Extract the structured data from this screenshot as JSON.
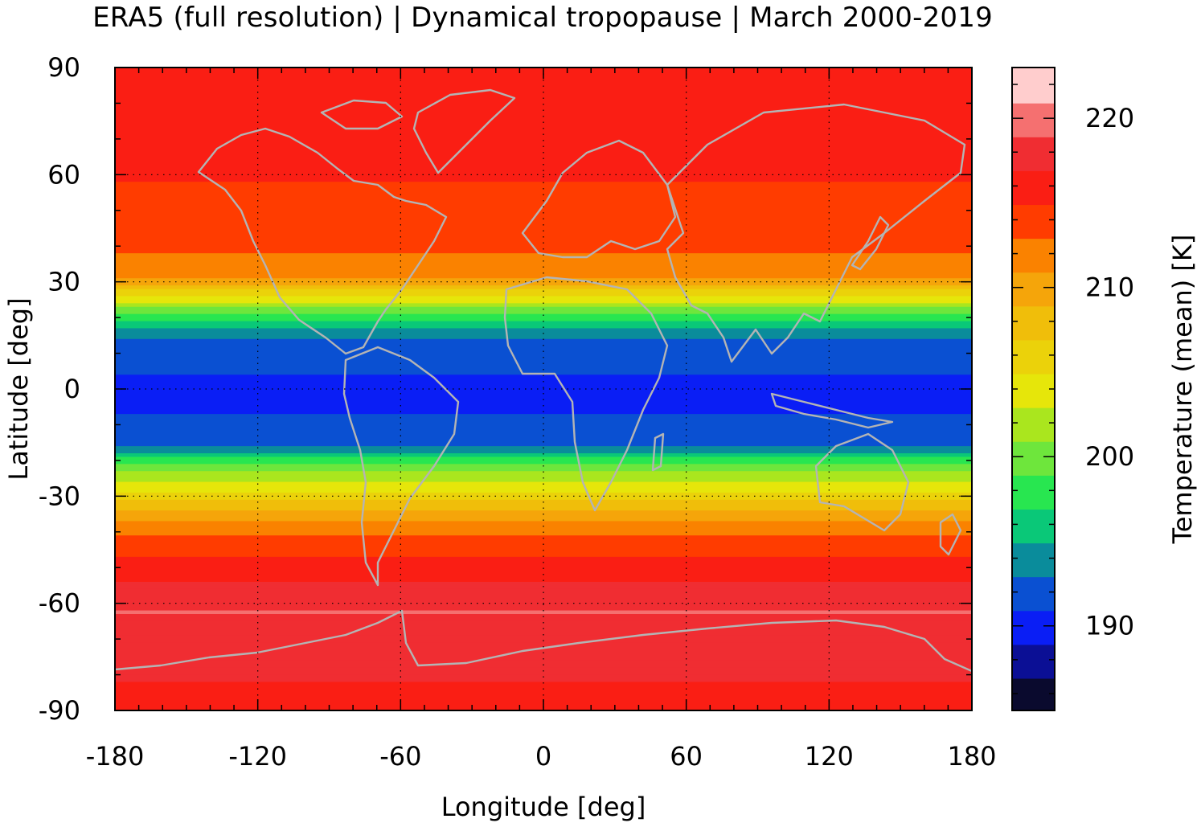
{
  "title": "ERA5 (full resolution) | Dynamical tropopause | March 2000-2019",
  "chart_data": {
    "type": "heatmap",
    "title": "ERA5 (full resolution) | Dynamical tropopause | March 2000-2019",
    "xlabel": "Longitude [deg]",
    "ylabel": "Latitude [deg]",
    "colorbar_label": "Temperature (mean) [K]",
    "xlim": [
      -180,
      180
    ],
    "ylim": [
      -90,
      90
    ],
    "xticks": [
      "-180",
      "-120",
      "-60",
      "0",
      "60",
      "120",
      "180"
    ],
    "yticks": [
      "90",
      "60",
      "30",
      "0",
      "-30",
      "-60",
      "-90"
    ],
    "colorbar_range": [
      185,
      223
    ],
    "colorbar_ticks": [
      "220",
      "210",
      "200",
      "190"
    ],
    "grid": true,
    "levels": [
      {
        "from": 185,
        "to": 186.9,
        "color": "#0a0a2e"
      },
      {
        "from": 186.9,
        "to": 188.9,
        "color": "#0b0f95"
      },
      {
        "from": 188.9,
        "to": 190.9,
        "color": "#0a1ef5"
      },
      {
        "from": 190.9,
        "to": 192.9,
        "color": "#0a50d2"
      },
      {
        "from": 192.9,
        "to": 194.9,
        "color": "#0a8c9b"
      },
      {
        "from": 194.9,
        "to": 196.9,
        "color": "#0ac878"
      },
      {
        "from": 196.9,
        "to": 198.9,
        "color": "#28e650"
      },
      {
        "from": 198.9,
        "to": 200.9,
        "color": "#6ee63c"
      },
      {
        "from": 200.9,
        "to": 202.9,
        "color": "#aae61e"
      },
      {
        "from": 202.9,
        "to": 204.9,
        "color": "#e6e60a"
      },
      {
        "from": 204.9,
        "to": 206.9,
        "color": "#ebd20a"
      },
      {
        "from": 206.9,
        "to": 208.9,
        "color": "#f0be0a"
      },
      {
        "from": 208.9,
        "to": 210.9,
        "color": "#f5a50a"
      },
      {
        "from": 210.9,
        "to": 212.9,
        "color": "#fa8200"
      },
      {
        "from": 212.9,
        "to": 214.9,
        "color": "#ff3c00"
      },
      {
        "from": 214.9,
        "to": 216.9,
        "color": "#fa1e14"
      },
      {
        "from": 216.9,
        "to": 218.9,
        "color": "#f02d32"
      },
      {
        "from": 218.9,
        "to": 220.9,
        "color": "#f57070"
      },
      {
        "from": 220.9,
        "to": 223,
        "color": "#ffcdcd"
      }
    ],
    "zonal_mean_profile": [
      {
        "lat": 90,
        "temp": 215
      },
      {
        "lat": 60,
        "temp": 215
      },
      {
        "lat": 45,
        "temp": 214
      },
      {
        "lat": 32,
        "temp": 212
      },
      {
        "lat": 27,
        "temp": 206
      },
      {
        "lat": 22,
        "temp": 200
      },
      {
        "lat": 15,
        "temp": 193
      },
      {
        "lat": 0,
        "temp": 190
      },
      {
        "lat": -15,
        "temp": 192
      },
      {
        "lat": -22,
        "temp": 200
      },
      {
        "lat": -30,
        "temp": 206
      },
      {
        "lat": -38,
        "temp": 212
      },
      {
        "lat": -50,
        "temp": 216
      },
      {
        "lat": -62,
        "temp": 219
      },
      {
        "lat": -72,
        "temp": 218
      },
      {
        "lat": -90,
        "temp": 216
      }
    ],
    "coastline_color": "#b4b4b4"
  }
}
